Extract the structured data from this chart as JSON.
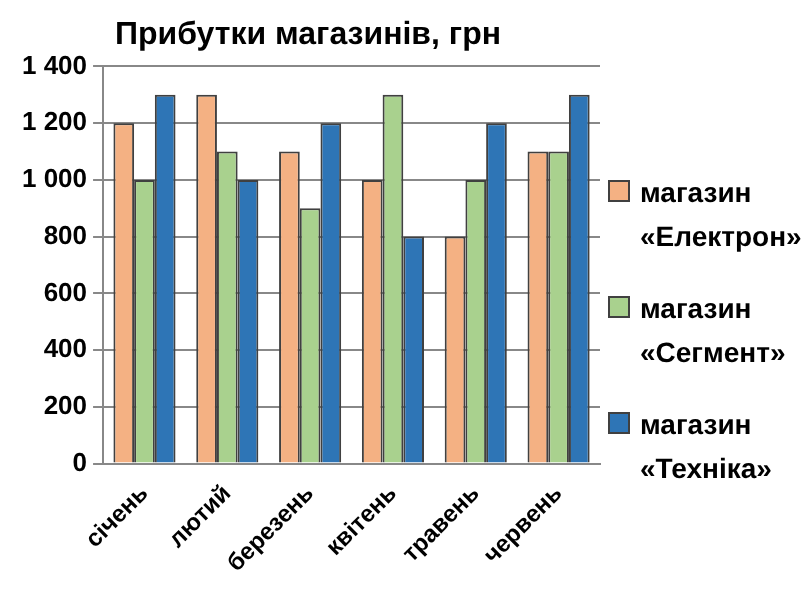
{
  "chart_data": {
    "type": "bar",
    "title": "Прибутки магазинів, грн",
    "categories": [
      "січень",
      "лютий",
      "березень",
      "квітень",
      "травень",
      "червень"
    ],
    "series": [
      {
        "name": "магазин «Електрон»",
        "color": "#f4b183",
        "values": [
          1200,
          1300,
          1100,
          1000,
          800,
          1100
        ]
      },
      {
        "name": "магазин «Сегмент»",
        "color": "#a9d18e",
        "values": [
          1000,
          1100,
          900,
          1300,
          1000,
          1100
        ]
      },
      {
        "name": "магазин «Техніка»",
        "color": "#2e75b6",
        "values": [
          1300,
          1000,
          1200,
          800,
          1200,
          1300
        ]
      }
    ],
    "ylim": [
      0,
      1400
    ],
    "yticks": [
      0,
      200,
      400,
      600,
      800,
      {
        "value": 1000,
        "label": "1 000"
      },
      {
        "value": 1200,
        "label": "1 200"
      },
      {
        "value": 1400,
        "label": "1 400"
      }
    ],
    "grid": "y",
    "legend": "right"
  }
}
